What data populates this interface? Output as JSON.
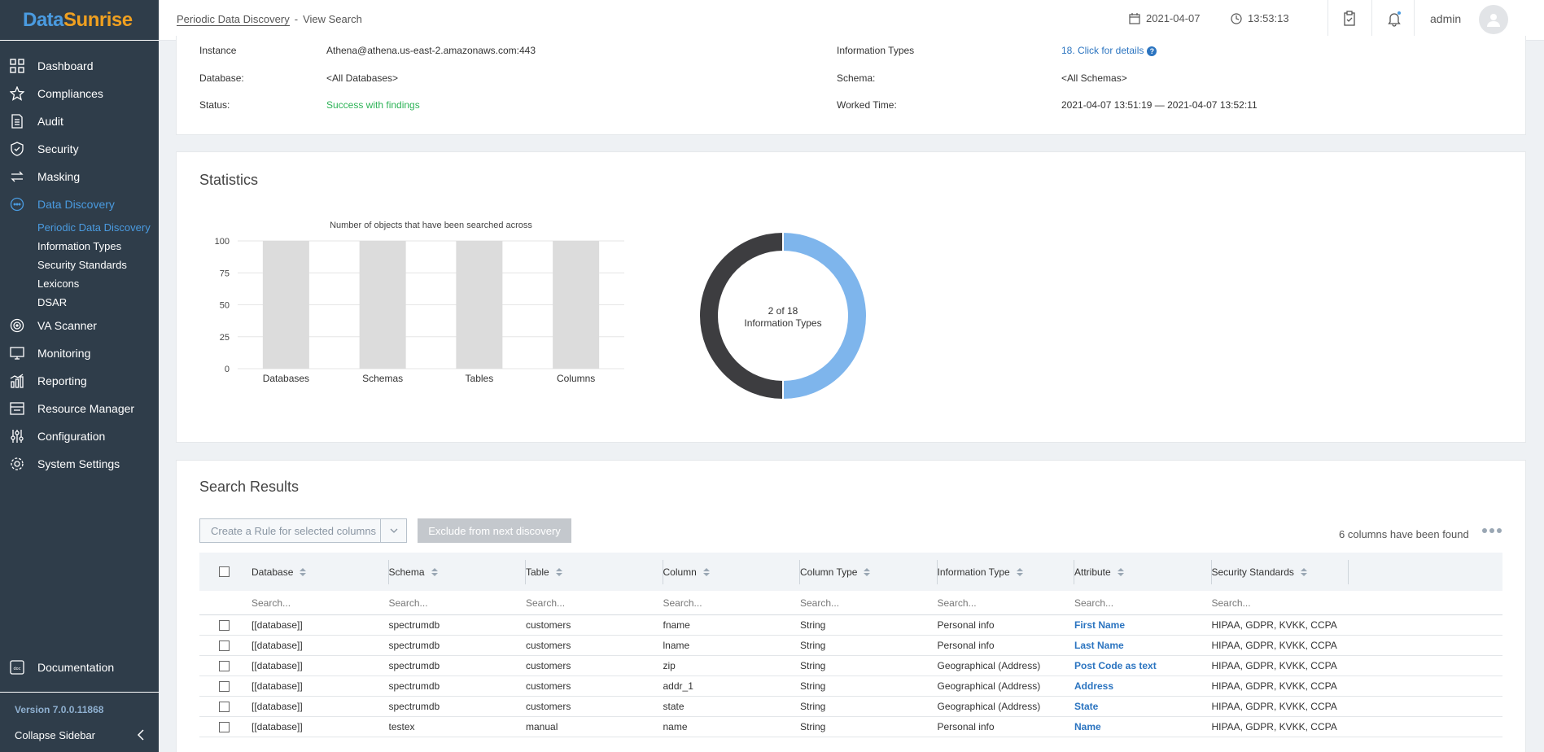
{
  "app": {
    "logo_part1": "Data",
    "logo_part2": "Sunrise"
  },
  "sidebar": {
    "items": [
      {
        "label": "Dashboard",
        "icon": "dashboard-icon"
      },
      {
        "label": "Compliances",
        "icon": "star-icon"
      },
      {
        "label": "Audit",
        "icon": "audit-icon"
      },
      {
        "label": "Security",
        "icon": "shield-icon"
      },
      {
        "label": "Masking",
        "icon": "masking-icon"
      },
      {
        "label": "Data Discovery",
        "icon": "discovery-icon"
      }
    ],
    "sub_items": [
      {
        "label": "Periodic Data Discovery"
      },
      {
        "label": "Information Types"
      },
      {
        "label": "Security Standards"
      },
      {
        "label": "Lexicons"
      },
      {
        "label": "DSAR"
      }
    ],
    "items2": [
      {
        "label": "VA Scanner",
        "icon": "va-scanner-icon"
      },
      {
        "label": "Monitoring",
        "icon": "monitor-icon"
      },
      {
        "label": "Reporting",
        "icon": "reporting-icon"
      },
      {
        "label": "Resource Manager",
        "icon": "resource-manager-icon"
      },
      {
        "label": "Configuration",
        "icon": "configuration-icon"
      },
      {
        "label": "System Settings",
        "icon": "settings-icon"
      }
    ],
    "documentation": "Documentation",
    "version": "Version 7.0.0.11868",
    "collapse": "Collapse Sidebar"
  },
  "header": {
    "breadcrumb_link": "Periodic Data Discovery",
    "breadcrumb_sep": "-",
    "breadcrumb_current": "View Search",
    "date": "2021-04-07",
    "time": "13:53:13",
    "user": "admin"
  },
  "details": {
    "instance_label": "Instance",
    "instance_value": "Athena@athena.us-east-2.amazonaws.com:443",
    "database_label": "Database:",
    "database_value": "<All Databases>",
    "status_label": "Status:",
    "status_value": "Success with findings",
    "info_types_label": "Information Types",
    "info_types_value": "18. Click for details",
    "schema_label": "Schema:",
    "schema_value": "<All Schemas>",
    "worked_time_label": "Worked Time:",
    "worked_time_value": "2021-04-07 13:51:19 — 2021-04-07 13:52:11"
  },
  "statistics": {
    "title": "Statistics"
  },
  "chart_data": [
    {
      "type": "bar",
      "title": "Number of objects that have been searched across",
      "categories": [
        "Databases",
        "Schemas",
        "Tables",
        "Columns"
      ],
      "values": [
        100,
        100,
        100,
        100
      ],
      "ylim": [
        0,
        100
      ],
      "yticks": [
        0,
        25,
        50,
        75,
        100
      ],
      "grid": true,
      "bar_color": "#dcdcdc"
    },
    {
      "type": "pie",
      "label_line1": "2 of 18",
      "label_line2": "Information Types",
      "slices": [
        {
          "value": 50,
          "color": "#7eb5ec"
        },
        {
          "value": 50,
          "color": "#3d3d40"
        }
      ]
    }
  ],
  "search_results": {
    "title": "Search Results",
    "create_rule_label": "Create a Rule for selected columns",
    "exclude_label": "Exclude from next discovery",
    "found_text": "6 columns have been found",
    "columns": [
      "Database",
      "Schema",
      "Table",
      "Column",
      "Column Type",
      "Information Type",
      "Attribute",
      "Security Standards"
    ],
    "search_placeholder": "Search...",
    "rows": [
      [
        "[[database]]",
        "spectrumdb",
        "customers",
        "fname",
        "String",
        "Personal info",
        "First Name",
        "HIPAA, GDPR, KVKK, CCPA"
      ],
      [
        "[[database]]",
        "spectrumdb",
        "customers",
        "lname",
        "String",
        "Personal info",
        "Last Name",
        "HIPAA, GDPR, KVKK, CCPA"
      ],
      [
        "[[database]]",
        "spectrumdb",
        "customers",
        "zip",
        "String",
        "Geographical (Address)",
        "Post Code as text",
        "HIPAA, GDPR, KVKK, CCPA"
      ],
      [
        "[[database]]",
        "spectrumdb",
        "customers",
        "addr_1",
        "String",
        "Geographical (Address)",
        "Address",
        "HIPAA, GDPR, KVKK, CCPA"
      ],
      [
        "[[database]]",
        "spectrumdb",
        "customers",
        "state",
        "String",
        "Geographical (Address)",
        "State",
        "HIPAA, GDPR, KVKK, CCPA"
      ],
      [
        "[[database]]",
        "testex",
        "manual",
        "name",
        "String",
        "Personal info",
        "Name",
        "HIPAA, GDPR, KVKK, CCPA"
      ]
    ]
  }
}
